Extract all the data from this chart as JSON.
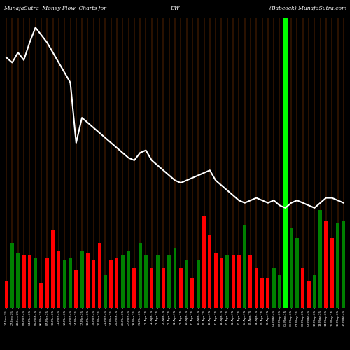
{
  "title_left": "MunafaSutra  Money Flow  Charts for",
  "title_mid": "BW",
  "title_right": "(Babcock) MunafaSutra.com",
  "background_color": "#000000",
  "bar_colors": [
    "red",
    "green",
    "green",
    "red",
    "red",
    "green",
    "red",
    "red",
    "red",
    "red",
    "green",
    "green",
    "red",
    "green",
    "red",
    "red",
    "red",
    "green",
    "red",
    "red",
    "green",
    "green",
    "red",
    "green",
    "green",
    "red",
    "green",
    "red",
    "green",
    "green",
    "red",
    "green",
    "red",
    "green",
    "red",
    "red",
    "red",
    "red",
    "green",
    "red",
    "red",
    "green",
    "red",
    "red",
    "red",
    "red",
    "green",
    "green",
    "red",
    "green",
    "green",
    "red",
    "red",
    "green",
    "green",
    "red",
    "red",
    "green",
    "green"
  ],
  "bar_heights": [
    55,
    130,
    110,
    105,
    105,
    100,
    50,
    100,
    155,
    115,
    95,
    100,
    75,
    115,
    110,
    95,
    130,
    65,
    95,
    100,
    105,
    115,
    80,
    130,
    105,
    80,
    105,
    80,
    105,
    120,
    80,
    95,
    60,
    95,
    185,
    145,
    110,
    100,
    105,
    105,
    105,
    165,
    105,
    80,
    60,
    60,
    80,
    65,
    195,
    160,
    140,
    80,
    55,
    65,
    195,
    175,
    140,
    170,
    175
  ],
  "line_values": [
    500,
    490,
    510,
    495,
    530,
    560,
    545,
    530,
    510,
    490,
    470,
    450,
    330,
    380,
    370,
    360,
    350,
    340,
    330,
    320,
    310,
    300,
    295,
    310,
    315,
    295,
    285,
    275,
    265,
    255,
    250,
    255,
    260,
    265,
    270,
    275,
    255,
    245,
    235,
    225,
    215,
    210,
    215,
    220,
    215,
    210,
    215,
    205,
    200,
    210,
    215,
    210,
    205,
    200,
    210,
    220,
    220,
    215,
    210
  ],
  "marker_bar_index": 48,
  "vline_color": "#cc5500",
  "marker_color": "#00ff00",
  "dates": [
    "24-Feb-75",
    "27-Feb-75",
    "28-Feb-75",
    "03-Mar-75",
    "04-Mar-75",
    "05-Mar-75",
    "06-Mar-75",
    "07-Mar-75",
    "10-Mar-75",
    "11-Mar-75",
    "12-Mar-75",
    "13-Mar-75",
    "14-Mar-75",
    "17-Mar-75",
    "18-Mar-75",
    "19-Mar-75",
    "20-Mar-75",
    "21-Mar-75",
    "24-Mar-75",
    "25-Mar-75",
    "26-Mar-75",
    "27-Mar-75",
    "28-Mar-75",
    "31-Mar-75",
    "01-Apr-75",
    "02-Apr-75",
    "03-Apr-75",
    "04-Apr-75",
    "07-Apr-75",
    "08-Apr-75",
    "09-Apr-75",
    "10-Apr-75",
    "11-Apr-75",
    "14-Apr-75",
    "15-Apr-75",
    "16-Apr-75",
    "17-Apr-75",
    "18-Apr-75",
    "21-Apr-75",
    "22-Apr-75",
    "23-Apr-75",
    "24-Apr-75",
    "25-Apr-75",
    "28-Apr-75",
    "29-Apr-75",
    "30-Apr-75",
    "01-May-75",
    "02-May-75",
    "05-May-75",
    "06-May-75",
    "07-May-75",
    "08-May-75",
    "09-May-75",
    "12-May-75",
    "13-May-75",
    "14-May-75",
    "15-May-75",
    "16-May-75",
    "17-May-75"
  ]
}
